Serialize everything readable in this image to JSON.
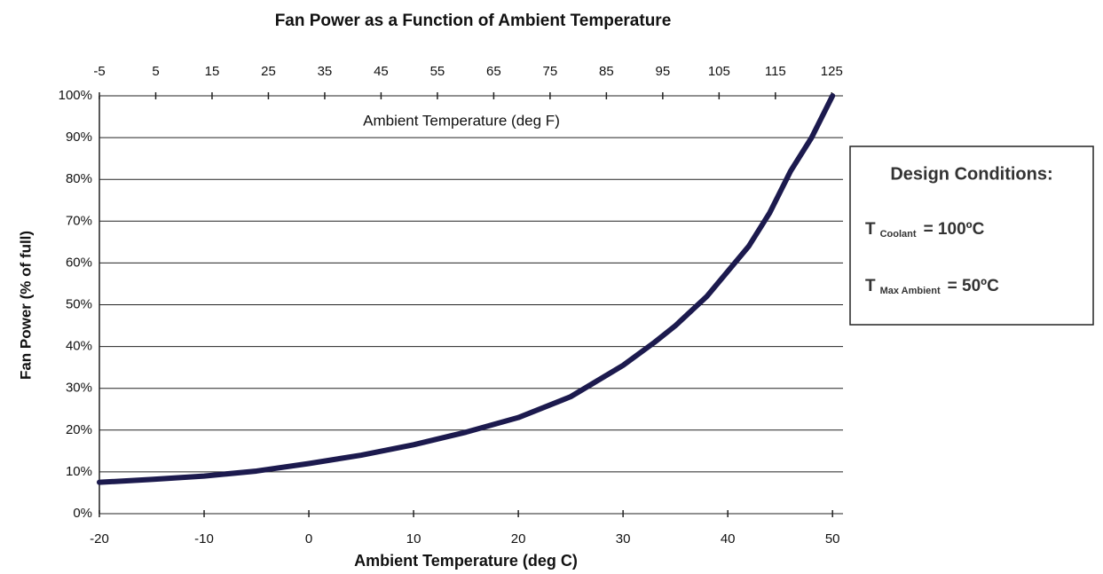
{
  "chart_data": {
    "type": "line",
    "title": "Fan Power as a Function of Ambient Temperature",
    "xlabel": "Ambient Temperature (deg C)",
    "x2label": "Ambient Temperature (deg F)",
    "ylabel": "Fan Power (% of full)",
    "x": [
      -20,
      -15,
      -10,
      -5,
      0,
      5,
      10,
      15,
      20,
      25,
      27,
      30,
      33,
      35,
      38,
      40,
      42,
      44,
      45,
      46,
      48,
      50
    ],
    "series": [
      {
        "color": "#1c1a4e",
        "values": [
          7.5,
          8.2,
          9,
          10.2,
          12,
          14,
          16.5,
          19.5,
          23,
          28,
          31,
          35.5,
          41,
          45,
          52,
          58,
          64,
          72,
          77,
          82,
          90,
          100
        ]
      }
    ],
    "xlim": [
      -20,
      51
    ],
    "xticks": [
      -20,
      -10,
      0,
      10,
      20,
      30,
      40,
      50
    ],
    "x2lim": [
      -5,
      127
    ],
    "x2ticks": [
      -5,
      5,
      15,
      25,
      35,
      45,
      55,
      65,
      75,
      85,
      95,
      105,
      115,
      125
    ],
    "ylim": [
      0,
      100
    ],
    "yticks": [
      {
        "value": 0,
        "label": "0%"
      },
      {
        "value": 10,
        "label": "10%"
      },
      {
        "value": 20,
        "label": "20%"
      },
      {
        "value": 30,
        "label": "30%"
      },
      {
        "value": 40,
        "label": "40%"
      },
      {
        "value": 50,
        "label": "50%"
      },
      {
        "value": 60,
        "label": "60%"
      },
      {
        "value": 70,
        "label": "70%"
      },
      {
        "value": 80,
        "label": "80%"
      },
      {
        "value": 90,
        "label": "90%"
      },
      {
        "value": 100,
        "label": "100%"
      }
    ],
    "grid": true,
    "annotation": {
      "title": "Design Conditions:",
      "lines": [
        {
          "symbol": "T",
          "subscript": "Coolant",
          "value": "= 100ºC"
        },
        {
          "symbol": "T",
          "subscript": "Max Ambient",
          "value": "= 50ºC"
        }
      ]
    }
  }
}
